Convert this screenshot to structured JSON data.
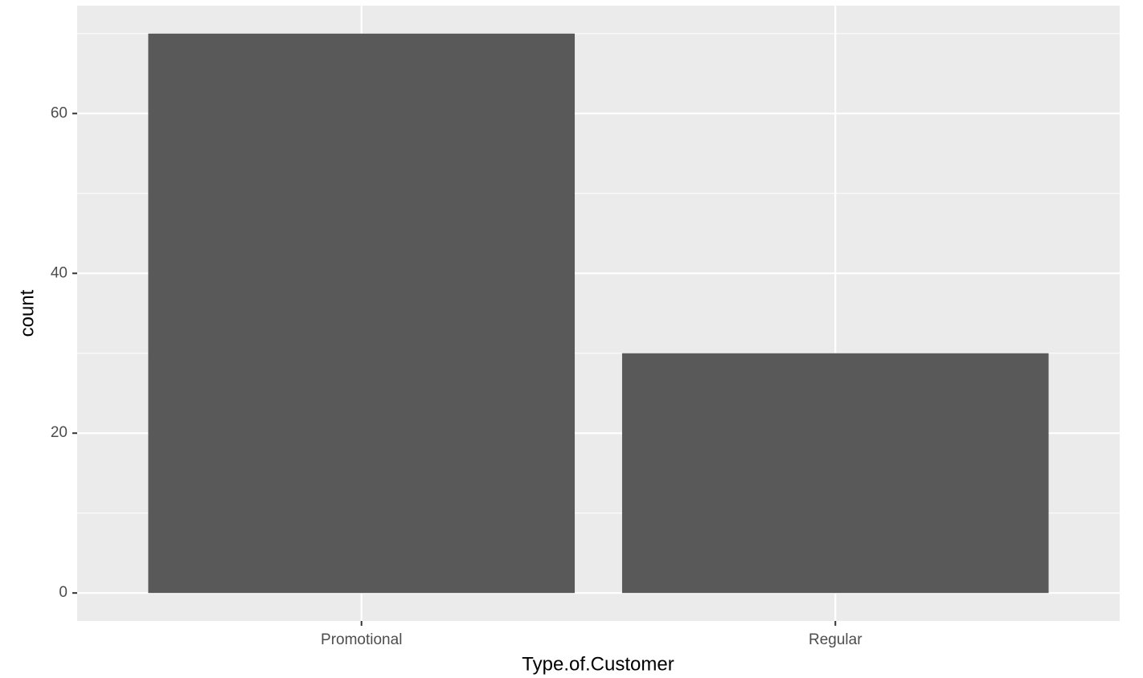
{
  "chart_data": {
    "type": "bar",
    "categories": [
      "Promotional",
      "Regular"
    ],
    "values": [
      70,
      30
    ],
    "color": "#595959",
    "ylim": [
      -3.5,
      73.5
    ],
    "yticks": [
      0,
      20,
      40,
      60
    ],
    "grid": true,
    "xlabel": "Type.of.Customer",
    "ylabel": "count"
  }
}
